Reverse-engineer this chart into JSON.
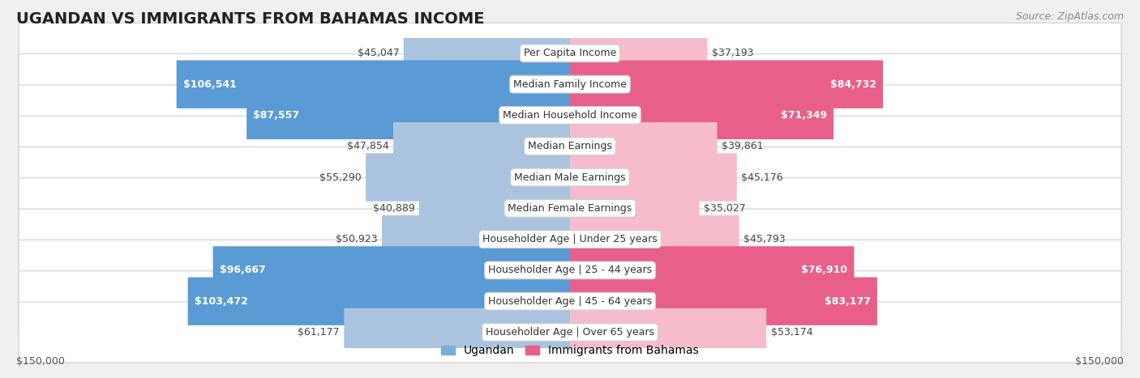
{
  "title": "UGANDAN VS IMMIGRANTS FROM BAHAMAS INCOME",
  "source": "Source: ZipAtlas.com",
  "categories": [
    "Per Capita Income",
    "Median Family Income",
    "Median Household Income",
    "Median Earnings",
    "Median Male Earnings",
    "Median Female Earnings",
    "Householder Age | Under 25 years",
    "Householder Age | 25 - 44 years",
    "Householder Age | 45 - 64 years",
    "Householder Age | Over 65 years"
  ],
  "ugandan_values": [
    45047,
    106541,
    87557,
    47854,
    55290,
    40889,
    50923,
    96667,
    103472,
    61177
  ],
  "bahamas_values": [
    37193,
    84732,
    71349,
    39861,
    45176,
    35027,
    45793,
    76910,
    83177,
    53174
  ],
  "ugandan_labels": [
    "$45,047",
    "$106,541",
    "$87,557",
    "$47,854",
    "$55,290",
    "$40,889",
    "$50,923",
    "$96,667",
    "$103,472",
    "$61,177"
  ],
  "bahamas_labels": [
    "$37,193",
    "$84,732",
    "$71,349",
    "$39,861",
    "$45,176",
    "$35,027",
    "$45,793",
    "$76,910",
    "$83,177",
    "$53,174"
  ],
  "ugandan_color_light": "#aac4e0",
  "ugandan_color_dark": "#5b9bd5",
  "bahamas_color_light": "#f7bccb",
  "bahamas_color_dark": "#e8608a",
  "ugandan_legend_color": "#7aaed4",
  "bahamas_legend_color": "#e8608a",
  "max_value": 150000,
  "inside_label_threshold": 70000,
  "background_color": "#f0f0f0",
  "row_bg_color": "#ffffff",
  "title_fontsize": 14,
  "source_fontsize": 9,
  "bar_label_fontsize": 9,
  "axis_label_fontsize": 9,
  "legend_fontsize": 10,
  "category_fontsize": 9
}
